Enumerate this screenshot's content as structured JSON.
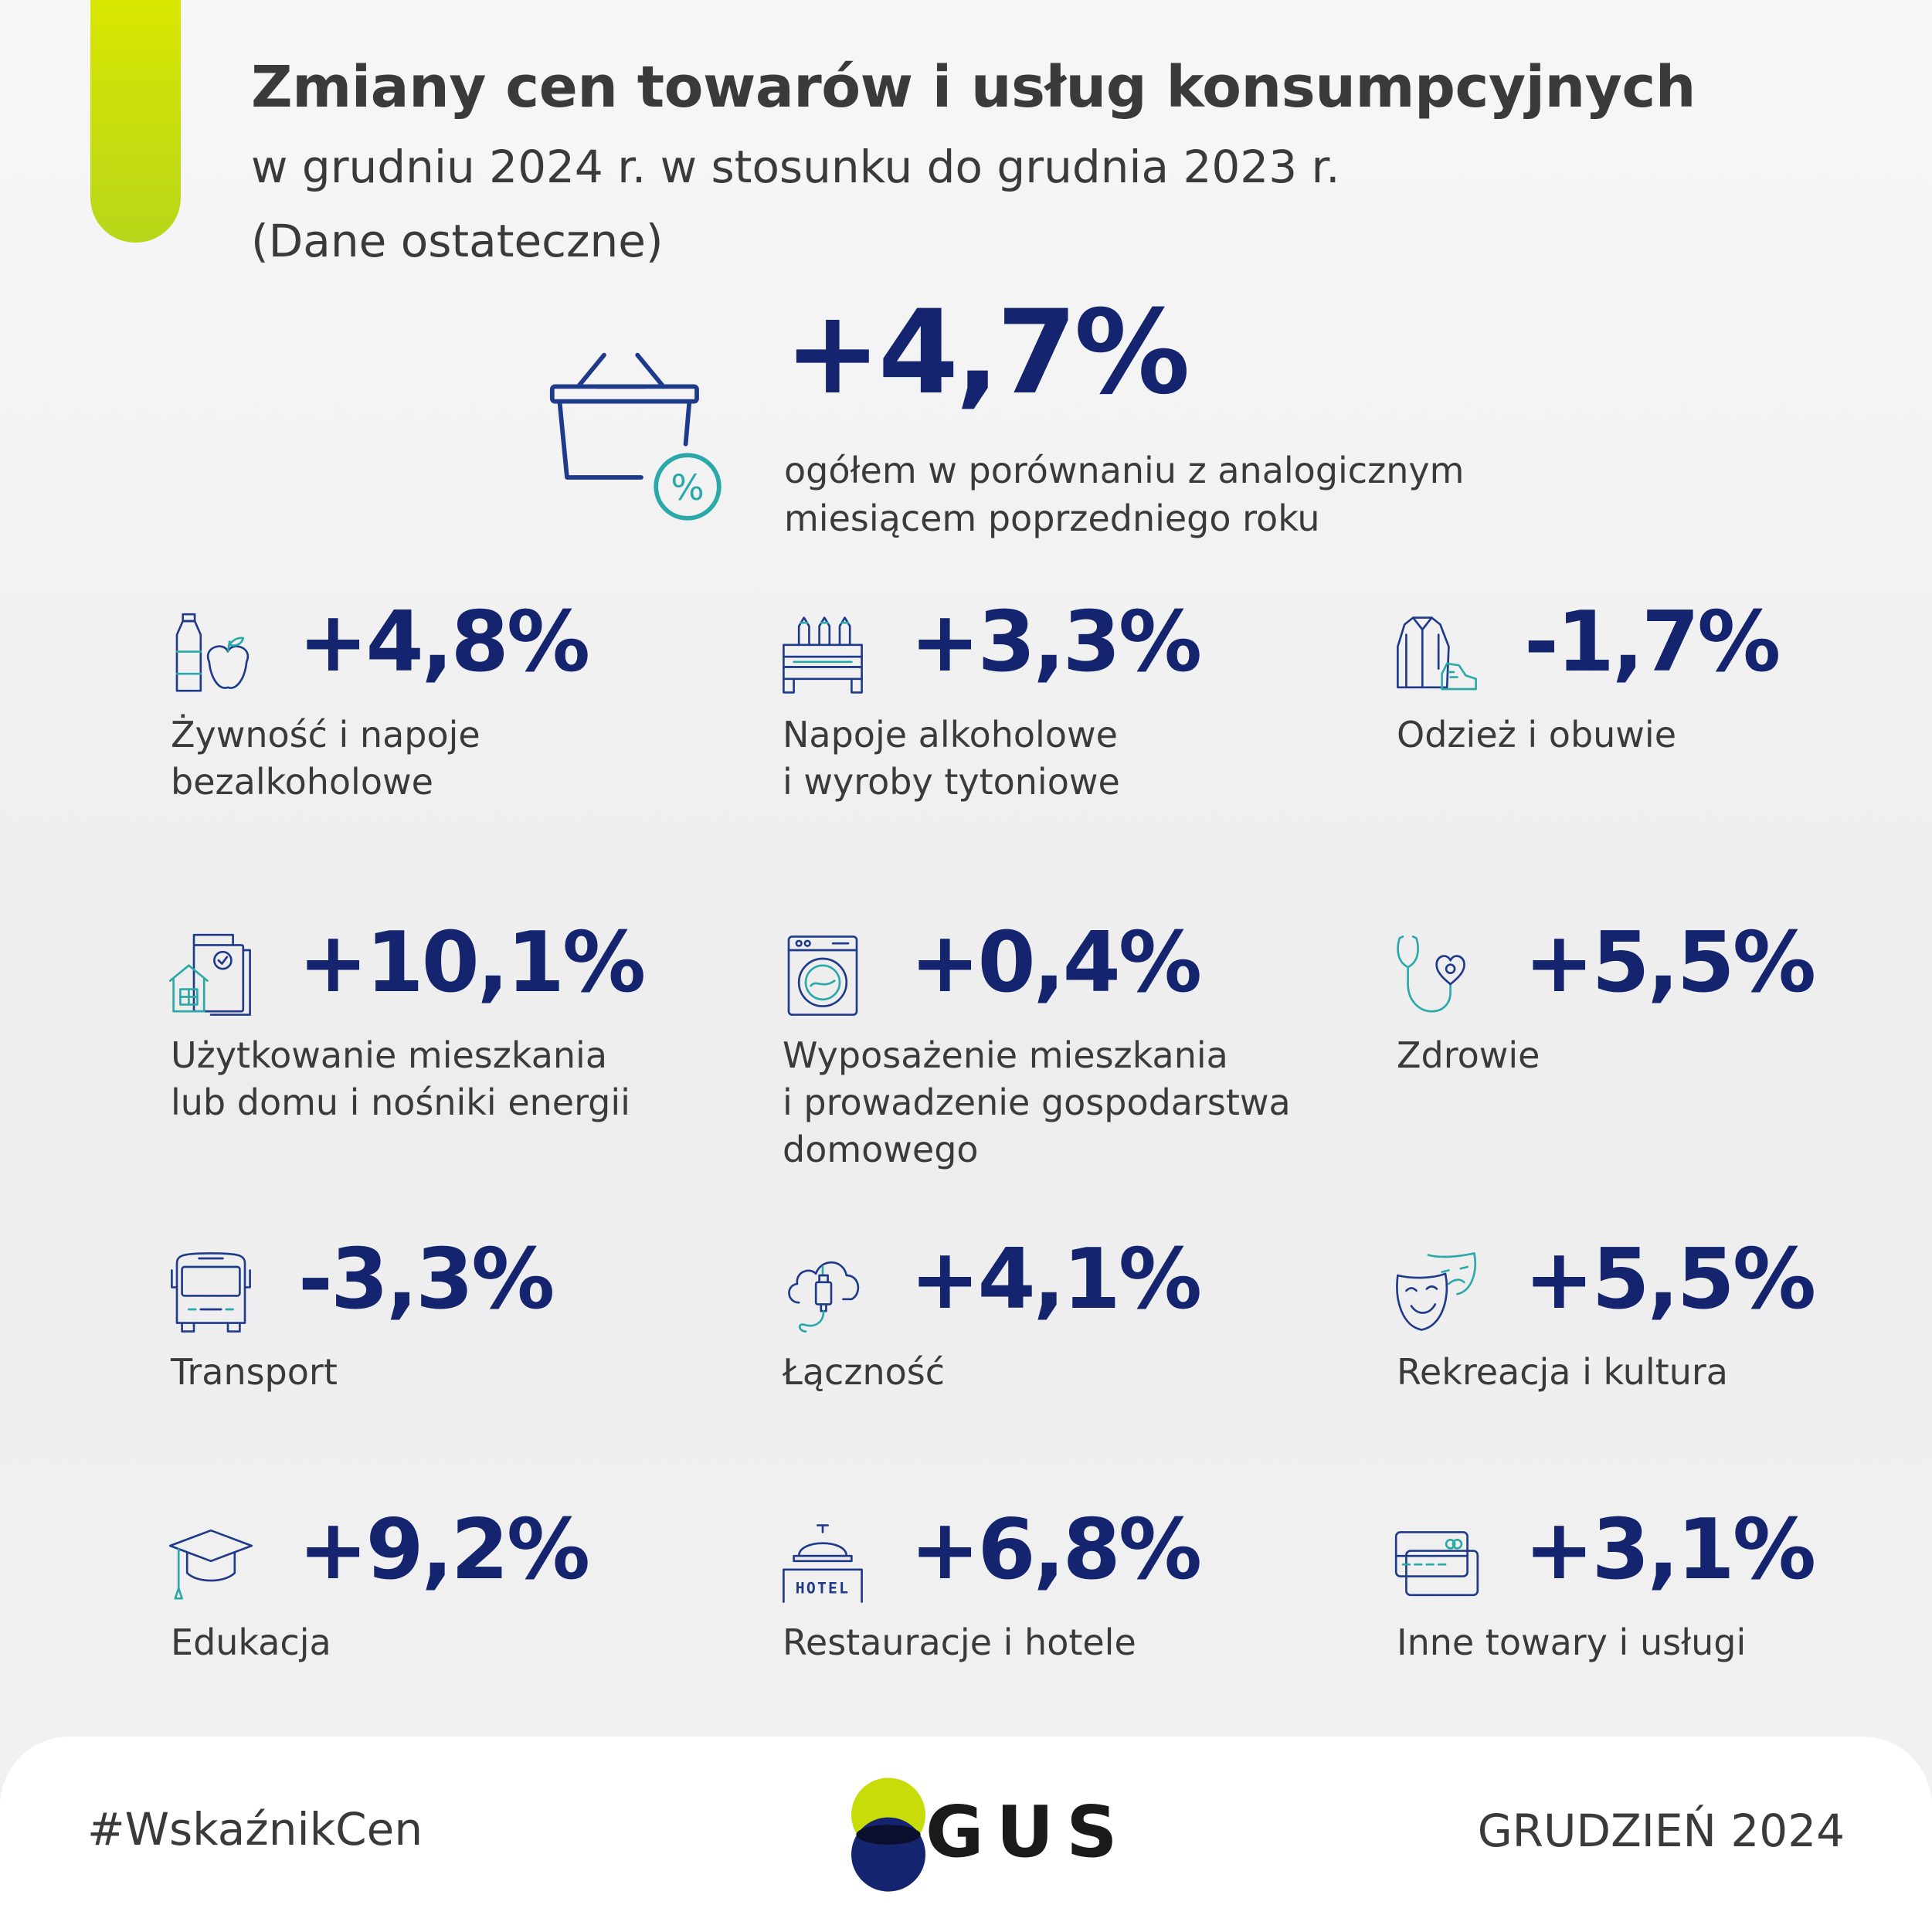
{
  "header": {
    "title": "Zmiany cen towarów i usług konsumpcyjnych",
    "subtitle_line1": "w grudniu 2024 r. w stosunku do grudnia 2023 r.",
    "subtitle_line2": "(Dane ostateczne)"
  },
  "overall": {
    "value": "+4,7%",
    "description_line1": "ogółem w porównaniu z analogicznym",
    "description_line2": "miesiącem poprzedniego roku",
    "icon": "shopping-basket-percent-icon",
    "icon_text": "%"
  },
  "categories": [
    {
      "value": "+4,8%",
      "label": "Żywność i napoje\nbezalkoholowe",
      "icon": "food-drink-icon"
    },
    {
      "value": "+3,3%",
      "label": "Napoje alkoholowe\ni wyroby tytoniowe",
      "icon": "bottle-crate-icon"
    },
    {
      "value": "-1,7%",
      "label": "Odzież i obuwie",
      "icon": "clothing-shoe-icon"
    },
    {
      "value": "+10,1%",
      "label": "Użytkowanie mieszkania\nlub domu i nośniki energii",
      "icon": "house-bill-icon"
    },
    {
      "value": "+0,4%",
      "label": "Wyposażenie mieszkania\ni prowadzenie gospodarstwa\ndomowego",
      "icon": "washing-machine-icon"
    },
    {
      "value": "+5,5%",
      "label": "Zdrowie",
      "icon": "stethoscope-heart-icon"
    },
    {
      "value": "-3,3%",
      "label": "Transport",
      "icon": "bus-icon"
    },
    {
      "value": "+4,1%",
      "label": "Łączność",
      "icon": "cloud-usb-icon"
    },
    {
      "value": "+5,5%",
      "label": "Rekreacja i kultura",
      "icon": "theater-masks-icon"
    },
    {
      "value": "+9,2%",
      "label": "Edukacja",
      "icon": "graduation-cap-icon"
    },
    {
      "value": "+6,8%",
      "label": "Restauracje i hotele",
      "icon": "hotel-bell-icon",
      "icon_text": "HOTEL"
    },
    {
      "value": "+3,1%",
      "label": "Inne towary i usługi",
      "icon": "payment-cards-icon"
    }
  ],
  "footer": {
    "hashtag": "#WskaźnikCen",
    "logo_text": "GUS",
    "period": "GRUDZIEŃ 2024"
  },
  "colors": {
    "value_navy": "#14246e",
    "accent_lime": "#c8dc0a",
    "icon_teal": "#2aa9a8",
    "icon_blue": "#1f3a8a"
  }
}
